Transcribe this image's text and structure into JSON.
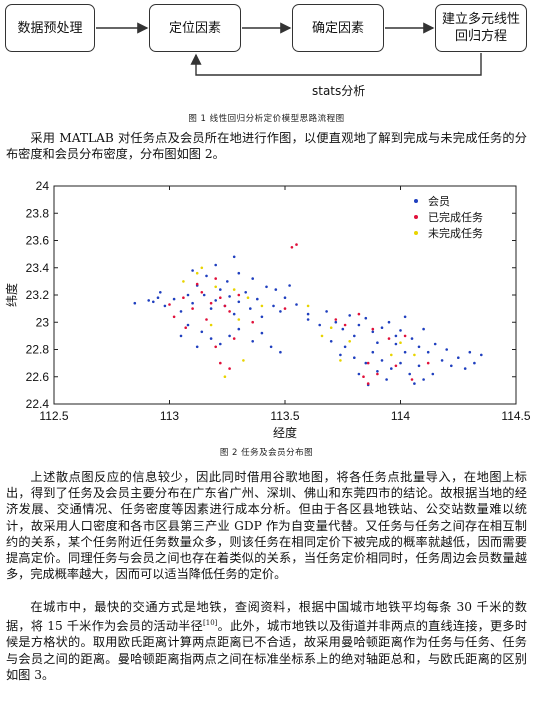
{
  "flowchart": {
    "steps": [
      "数据预处理",
      "定位因素",
      "确定因素",
      "建立多元线性回归方程"
    ],
    "loop_label": "stats分析"
  },
  "figure1_caption": "图 1 线性回归分析定价模型思路流程图",
  "paragraph1": "采用 MATLAB 对任务点及会员所在地进行作图，以便直观地了解到完成与未完成任务的分布密度和会员分布密度，分布图如图 2。",
  "chart_data": {
    "type": "scatter",
    "title": "",
    "xlabel": "经度",
    "ylabel": "纬度",
    "xlim": [
      112.5,
      114.5
    ],
    "ylim": [
      22.4,
      24
    ],
    "xticks": [
      "112.5",
      "113",
      "113.5",
      "114",
      "114.5"
    ],
    "yticks": [
      "22.4",
      "22.6",
      "22.8",
      "23",
      "23.2",
      "23.4",
      "23.6",
      "23.8",
      "24"
    ],
    "legend_position": "top-right",
    "series": [
      {
        "name": "会员",
        "color": "#1f3fbf",
        "points": [
          [
            112.91,
            23.16
          ],
          [
            112.93,
            23.15
          ],
          [
            112.95,
            23.18
          ],
          [
            112.98,
            23.12
          ],
          [
            113.02,
            23.17
          ],
          [
            113.05,
            23.08
          ],
          [
            113.08,
            23.2
          ],
          [
            113.1,
            23.14
          ],
          [
            113.12,
            23.27
          ],
          [
            113.15,
            23.2
          ],
          [
            113.18,
            23.1
          ],
          [
            113.2,
            23.16
          ],
          [
            113.22,
            23.24
          ],
          [
            113.24,
            23.12
          ],
          [
            113.26,
            23.19
          ],
          [
            113.28,
            23.06
          ],
          [
            113.3,
            23.15
          ],
          [
            113.33,
            23.22
          ],
          [
            113.35,
            23.1
          ],
          [
            113.38,
            23.17
          ],
          [
            113.4,
            23.04
          ],
          [
            113.42,
            23.26
          ],
          [
            113.45,
            23.12
          ],
          [
            113.48,
            23.08
          ],
          [
            113.5,
            23.18
          ],
          [
            113.55,
            23.13
          ],
          [
            113.6,
            23.06
          ],
          [
            113.14,
            22.93
          ],
          [
            113.18,
            22.88
          ],
          [
            113.22,
            22.84
          ],
          [
            113.26,
            22.9
          ],
          [
            113.3,
            22.95
          ],
          [
            113.12,
            22.82
          ],
          [
            113.08,
            22.98
          ],
          [
            113.05,
            22.9
          ],
          [
            113.36,
            22.86
          ],
          [
            113.4,
            22.92
          ],
          [
            113.1,
            23.38
          ],
          [
            113.16,
            23.34
          ],
          [
            113.2,
            23.42
          ],
          [
            113.25,
            23.3
          ],
          [
            113.3,
            23.36
          ],
          [
            113.28,
            23.48
          ],
          [
            113.36,
            23.32
          ],
          [
            113.6,
            23.02
          ],
          [
            113.65,
            22.98
          ],
          [
            113.68,
            23.08
          ],
          [
            113.72,
            23.0
          ],
          [
            113.75,
            22.95
          ],
          [
            113.78,
            23.05
          ],
          [
            113.8,
            22.9
          ],
          [
            113.82,
            22.98
          ],
          [
            113.85,
            23.03
          ],
          [
            113.88,
            22.93
          ],
          [
            113.9,
            22.85
          ],
          [
            113.92,
            22.96
          ],
          [
            113.95,
            23.0
          ],
          [
            113.98,
            22.9
          ],
          [
            114.0,
            22.94
          ],
          [
            114.02,
            23.04
          ],
          [
            114.05,
            22.88
          ],
          [
            114.08,
            22.82
          ],
          [
            114.1,
            22.95
          ],
          [
            114.12,
            22.78
          ],
          [
            114.15,
            22.84
          ],
          [
            114.18,
            22.72
          ],
          [
            114.2,
            22.8
          ],
          [
            114.22,
            22.68
          ],
          [
            114.25,
            22.74
          ],
          [
            114.28,
            22.66
          ],
          [
            114.3,
            22.78
          ],
          [
            114.32,
            22.7
          ],
          [
            114.35,
            22.76
          ],
          [
            113.88,
            22.78
          ],
          [
            113.92,
            22.72
          ],
          [
            113.96,
            22.66
          ],
          [
            114.0,
            22.7
          ],
          [
            114.04,
            22.62
          ],
          [
            114.08,
            22.68
          ],
          [
            114.1,
            22.58
          ],
          [
            113.94,
            22.58
          ],
          [
            113.9,
            22.64
          ],
          [
            113.85,
            22.7
          ],
          [
            113.82,
            22.62
          ],
          [
            113.86,
            22.54
          ],
          [
            114.06,
            22.55
          ],
          [
            114.14,
            22.62
          ],
          [
            114.02,
            22.78
          ],
          [
            113.98,
            22.84
          ],
          [
            113.76,
            22.82
          ],
          [
            113.7,
            22.86
          ],
          [
            113.74,
            22.76
          ],
          [
            113.8,
            22.74
          ],
          [
            112.85,
            23.14
          ],
          [
            112.96,
            23.22
          ],
          [
            113.46,
            23.24
          ],
          [
            113.52,
            23.27
          ],
          [
            113.44,
            22.82
          ],
          [
            113.48,
            22.78
          ]
        ]
      },
      {
        "name": "已完成任务",
        "color": "#e0103a",
        "points": [
          [
            113.0,
            23.13
          ],
          [
            113.06,
            23.18
          ],
          [
            113.1,
            23.1
          ],
          [
            113.14,
            23.22
          ],
          [
            113.18,
            23.14
          ],
          [
            113.22,
            23.18
          ],
          [
            113.26,
            23.08
          ],
          [
            113.3,
            23.2
          ],
          [
            113.16,
            23.02
          ],
          [
            113.24,
            23.12
          ],
          [
            113.12,
            23.28
          ],
          [
            113.2,
            23.32
          ],
          [
            113.07,
            22.96
          ],
          [
            113.2,
            22.82
          ],
          [
            113.28,
            22.88
          ],
          [
            113.22,
            22.7
          ],
          [
            113.26,
            22.66
          ],
          [
            113.53,
            23.55
          ],
          [
            113.55,
            23.57
          ],
          [
            113.76,
            22.98
          ],
          [
            113.82,
            23.06
          ],
          [
            113.88,
            22.95
          ],
          [
            113.95,
            22.88
          ],
          [
            114.02,
            22.9
          ],
          [
            113.86,
            22.7
          ],
          [
            113.9,
            22.62
          ],
          [
            113.98,
            22.68
          ],
          [
            114.05,
            22.58
          ],
          [
            113.86,
            22.55
          ],
          [
            113.84,
            22.6
          ],
          [
            114.12,
            22.7
          ],
          [
            113.5,
            23.1
          ],
          [
            113.02,
            23.04
          ],
          [
            113.36,
            23.0
          ],
          [
            113.72,
            23.02
          ]
        ]
      },
      {
        "name": "未完成任务",
        "color": "#e8d400",
        "points": [
          [
            113.06,
            23.3
          ],
          [
            113.12,
            23.36
          ],
          [
            113.2,
            23.26
          ],
          [
            113.28,
            23.24
          ],
          [
            113.34,
            23.18
          ],
          [
            113.4,
            23.12
          ],
          [
            113.18,
            22.98
          ],
          [
            113.3,
            23.02
          ],
          [
            113.24,
            22.6
          ],
          [
            113.32,
            22.72
          ],
          [
            113.66,
            22.9
          ],
          [
            113.7,
            22.96
          ],
          [
            113.78,
            22.86
          ],
          [
            114.0,
            22.85
          ],
          [
            114.06,
            22.76
          ],
          [
            113.74,
            22.72
          ],
          [
            113.96,
            22.76
          ],
          [
            113.6,
            23.12
          ],
          [
            113.14,
            23.4
          ]
        ]
      }
    ]
  },
  "figure2_caption": "图 2 任务及会员分布图",
  "paragraph2": "上述散点图反应的信息较少，因此同时借用谷歌地图，将各任务点批量导入，在地图上标出，得到了任务及会员主要分布在广东省广州、深圳、佛山和东莞四市的结论。故根据当地的经济发展、交通情况、任务密度等因素进行成本分析。但由于各区县地铁站、公交站数量难以统计，故采用人口密度和各市区县第三产业 GDP 作为自变量代替。又任务与任务之间存在相互制约的关系，某个任务附近任务数量众多，则该任务在相同定价下被完成的概率就越低，因而需要提高定价。同理任务与会员之间也存在着类似的关系，当任务定价相同时，任务周边会员数量越多，完成概率越大，因而可以适当降低任务的定价。",
  "paragraph3_pre": "在城市中，最快的交通方式是地铁，查阅资料，根据中国城市地铁平均每条 30 千米的数据，将 15 千米作为会员的活动半径",
  "paragraph3_ref": "[10]",
  "paragraph3_post": "。此外，城市地铁以及街道并非两点的直线连接，更多时候是方格状的。取用欧氏距离计算两点距离已不合适，故采用曼哈顿距离作为任务与任务、任务与会员之间的距离。曼哈顿距离指两点之间在标准坐标系上的绝对轴距总和，与欧氏距离的区别如图 3。"
}
